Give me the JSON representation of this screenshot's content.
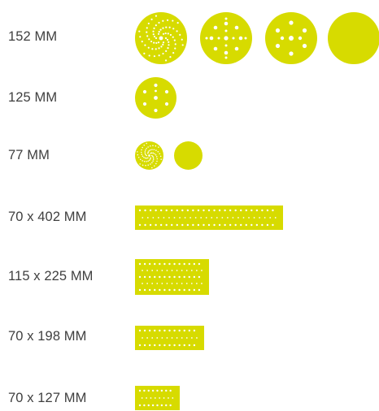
{
  "colors": {
    "abrasive": "#d7db00",
    "hole": "#ffffff",
    "text": "#3f3f3f"
  },
  "sizes": [
    {
      "label": "152 MM",
      "shape": "disc",
      "patterns": [
        "spiral-multihole",
        "multihole-17",
        "holes-9",
        "no-holes"
      ]
    },
    {
      "label": "125 MM",
      "shape": "disc",
      "patterns": [
        "holes-8"
      ]
    },
    {
      "label": "77 MM",
      "shape": "disc",
      "patterns": [
        "spiral-multihole",
        "no-holes"
      ]
    },
    {
      "label": "70 x 402 MM",
      "shape": "strip",
      "patterns": [
        "multihole-grid"
      ]
    },
    {
      "label": "115 x 225 MM",
      "shape": "sheet",
      "patterns": [
        "multihole-grid"
      ]
    },
    {
      "label": "70 x 198 MM",
      "shape": "strip",
      "patterns": [
        "multihole-grid"
      ]
    },
    {
      "label": "70 x 127 MM",
      "shape": "strip",
      "patterns": [
        "multihole-grid"
      ]
    }
  ]
}
